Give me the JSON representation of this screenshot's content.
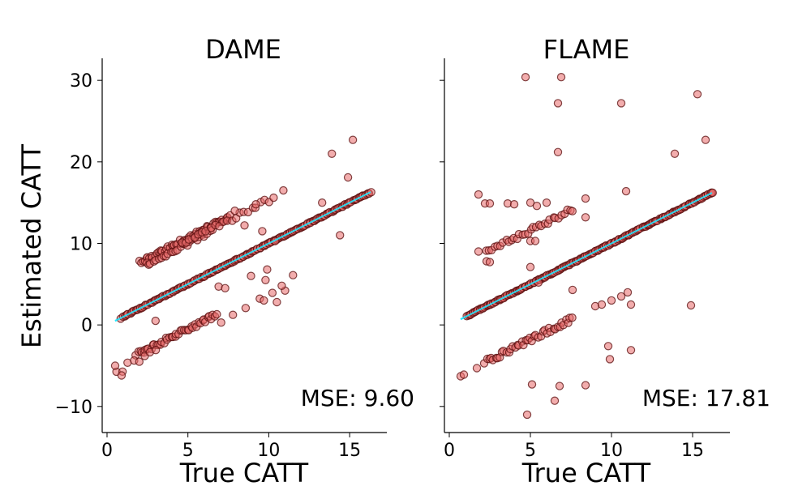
{
  "figure": {
    "ylabel": "Estimated CATT"
  },
  "colors": {
    "marker_fill": "#e86a6a",
    "marker_edge": "#5a0e0e",
    "fit_line": "#22e8ff",
    "axis": "#000000"
  },
  "chart_data": [
    {
      "type": "scatter",
      "title": "DAME",
      "xlabel": "True CATT",
      "ylabel": "Estimated CATT",
      "xlim": [
        -0.3,
        17.3
      ],
      "ylim": [
        -13.2,
        32.7
      ],
      "xticks": [
        0,
        5,
        10,
        15
      ],
      "yticks": [
        -10,
        0,
        10,
        20,
        30
      ],
      "mse_text": "MSE: 9.60",
      "fit_line": {
        "x": [
          0.5,
          16.3
        ],
        "y": [
          0.5,
          16.3
        ]
      },
      "bands": [
        {
          "x_range": [
            0.9,
            16.3
          ],
          "offset": 0,
          "n": 180,
          "jitter": 0.08
        },
        {
          "x_range": [
            2.0,
            7.6
          ],
          "offset": 5.7,
          "n": 55,
          "jitter": 0.25
        },
        {
          "x_range": [
            2.4,
            6.5
          ],
          "offset": 5.0,
          "n": 28,
          "jitter": 0.25
        },
        {
          "x_range": [
            4.6,
            10.0
          ],
          "offset": 5.3,
          "n": 22,
          "jitter": 0.3
        },
        {
          "x_range": [
            1.8,
            6.8
          ],
          "offset": -5.5,
          "n": 45,
          "jitter": 0.3
        },
        {
          "x_range": [
            0.6,
            3.0
          ],
          "offset": -6.3,
          "n": 8,
          "jitter": 0.4
        },
        {
          "x_range": [
            7.0,
            11.0
          ],
          "offset": -6.5,
          "n": 6,
          "jitter": 0.4
        }
      ],
      "points": [
        {
          "x": 13.9,
          "y": 21
        },
        {
          "x": 15.2,
          "y": 22.7
        },
        {
          "x": 14.9,
          "y": 18.1
        },
        {
          "x": 14.4,
          "y": 11
        },
        {
          "x": 13.3,
          "y": 15
        },
        {
          "x": 10.3,
          "y": 15.6
        },
        {
          "x": 10.9,
          "y": 16.5
        },
        {
          "x": 9.2,
          "y": 14.8
        },
        {
          "x": 9.6,
          "y": 11.5
        },
        {
          "x": 9.9,
          "y": 6.8
        },
        {
          "x": 10.4,
          "y": 10.3
        },
        {
          "x": 10.8,
          "y": 4.8
        },
        {
          "x": 11.5,
          "y": 6.1
        },
        {
          "x": 10.5,
          "y": 2.8
        },
        {
          "x": 9.8,
          "y": 5.5
        },
        {
          "x": 8.9,
          "y": 6.0
        },
        {
          "x": 0.5,
          "y": -5.0
        },
        {
          "x": 0.9,
          "y": -6.2
        },
        {
          "x": 6.9,
          "y": 4.7
        },
        {
          "x": 7.3,
          "y": 4.5
        },
        {
          "x": 8.5,
          "y": 12.2
        },
        {
          "x": 7.9,
          "y": 14.0
        },
        {
          "x": 9.7,
          "y": 3.0
        },
        {
          "x": 3.0,
          "y": 0.5
        }
      ]
    },
    {
      "type": "scatter",
      "title": "FLAME",
      "xlabel": "True CATT",
      "ylabel": "",
      "xlim": [
        -0.3,
        17.3
      ],
      "ylim": [
        -13.2,
        32.7
      ],
      "xticks": [
        0,
        5,
        10,
        15
      ],
      "yticks": [
        -10,
        0,
        10,
        20,
        30
      ],
      "mse_text": "MSE: 17.81",
      "fit_line": {
        "x": [
          0.7,
          16.2
        ],
        "y": [
          0.7,
          16.2
        ]
      },
      "bands": [
        {
          "x_range": [
            1.1,
            16.3
          ],
          "offset": 0,
          "n": 200,
          "jitter": 0.08
        },
        {
          "x_range": [
            2.3,
            7.6
          ],
          "offset": 6.6,
          "n": 32,
          "jitter": 0.3
        },
        {
          "x_range": [
            2.2,
            7.6
          ],
          "offset": -6.8,
          "n": 42,
          "jitter": 0.3
        }
      ],
      "points": [
        {
          "x": 4.7,
          "y": 30.4
        },
        {
          "x": 6.9,
          "y": 30.4
        },
        {
          "x": 6.7,
          "y": 27.2
        },
        {
          "x": 10.6,
          "y": 27.2
        },
        {
          "x": 15.3,
          "y": 28.3
        },
        {
          "x": 15.8,
          "y": 22.7
        },
        {
          "x": 13.9,
          "y": 21
        },
        {
          "x": 6.7,
          "y": 21.2
        },
        {
          "x": 1.8,
          "y": 16.0
        },
        {
          "x": 2.2,
          "y": 14.9
        },
        {
          "x": 2.5,
          "y": 14.9
        },
        {
          "x": 3.6,
          "y": 14.9
        },
        {
          "x": 4.0,
          "y": 14.8
        },
        {
          "x": 5.0,
          "y": 15.0
        },
        {
          "x": 5.4,
          "y": 14.6
        },
        {
          "x": 6.0,
          "y": 15.0
        },
        {
          "x": 8.4,
          "y": 15.5
        },
        {
          "x": 10.9,
          "y": 16.4
        },
        {
          "x": 8.4,
          "y": 13.2
        },
        {
          "x": 1.8,
          "y": 9.0
        },
        {
          "x": 2.3,
          "y": 7.8
        },
        {
          "x": 2.5,
          "y": 7.7
        },
        {
          "x": 5.0,
          "y": 10.3
        },
        {
          "x": 5.3,
          "y": 10.3
        },
        {
          "x": 5.0,
          "y": 7.1
        },
        {
          "x": 5.5,
          "y": 5.2
        },
        {
          "x": 7.6,
          "y": 4.3
        },
        {
          "x": 9.0,
          "y": 2.3
        },
        {
          "x": 9.4,
          "y": 2.5
        },
        {
          "x": 10.0,
          "y": 3.0
        },
        {
          "x": 10.6,
          "y": 3.5
        },
        {
          "x": 11.0,
          "y": 4.0
        },
        {
          "x": 11.2,
          "y": 2.5
        },
        {
          "x": 14.9,
          "y": 2.4
        },
        {
          "x": 9.8,
          "y": -2.6
        },
        {
          "x": 9.9,
          "y": -4.2
        },
        {
          "x": 11.2,
          "y": -3.1
        },
        {
          "x": 5.1,
          "y": -7.3
        },
        {
          "x": 6.8,
          "y": -7.5
        },
        {
          "x": 8.4,
          "y": -7.4
        },
        {
          "x": 6.5,
          "y": -9.3
        },
        {
          "x": 4.8,
          "y": -11.0
        },
        {
          "x": 0.7,
          "y": -6.3
        },
        {
          "x": 0.9,
          "y": -6.1
        },
        {
          "x": 1.7,
          "y": -5.3
        }
      ]
    }
  ]
}
